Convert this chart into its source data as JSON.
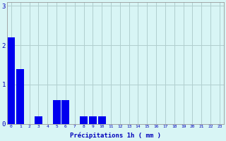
{
  "values": [
    2.2,
    1.4,
    0.0,
    0.2,
    0.0,
    0.6,
    0.6,
    0.0,
    0.2,
    0.2,
    0.2,
    0.0,
    0.0,
    0.0,
    0.0,
    0.0,
    0.0,
    0.0,
    0.0,
    0.0,
    0.0,
    0.0,
    0.0,
    0.0
  ],
  "bar_color": "#0000ee",
  "background_color": "#d8f5f5",
  "grid_color": "#b0cece",
  "xlabel": "Précipitations 1h ( mm )",
  "xlabel_color": "#0000bb",
  "tick_color": "#0000bb",
  "ylim": [
    0,
    3.1
  ],
  "yticks": [
    0,
    1,
    2,
    3
  ],
  "n_bars": 24
}
